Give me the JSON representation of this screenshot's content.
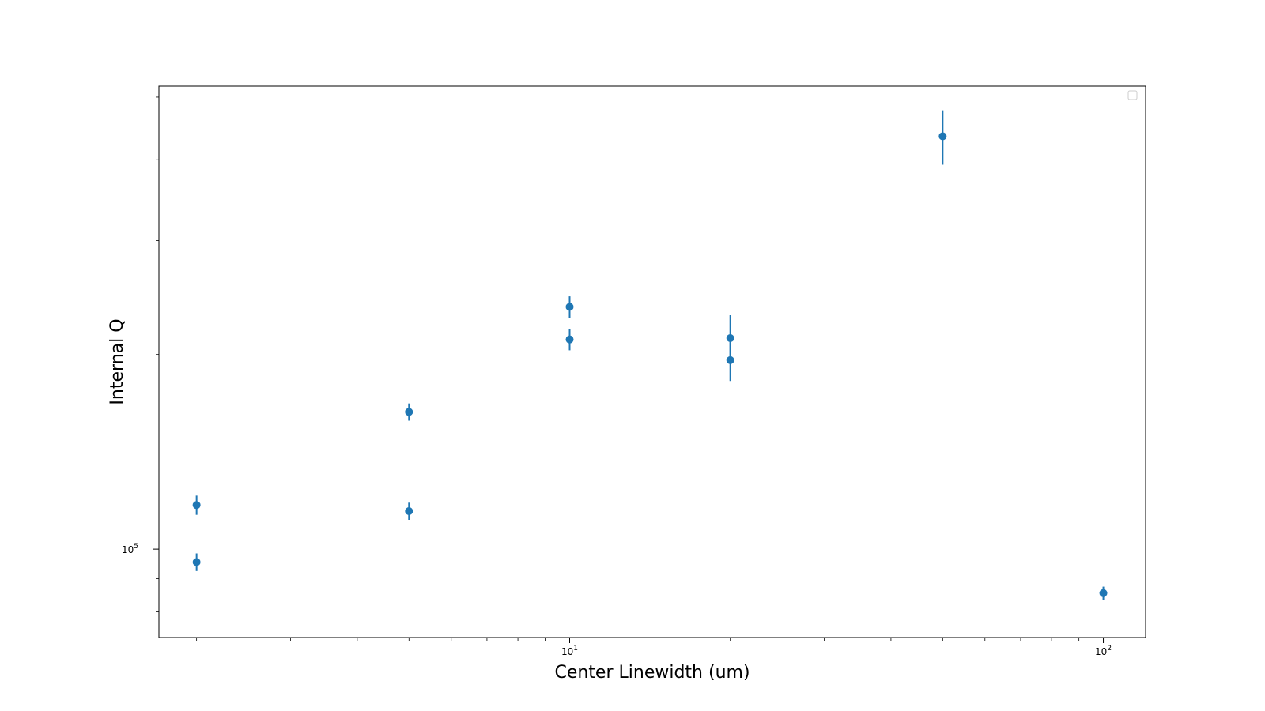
{
  "chart_data": {
    "type": "scatter",
    "title": "",
    "xlabel": "Center Linewidth (um)",
    "ylabel": "Internal Q",
    "xscale": "log",
    "yscale": "log",
    "xlim": [
      1.7,
      120
    ],
    "ylim": [
      73000,
      520000
    ],
    "grid": false,
    "legend": "top-right (empty)",
    "marker_color": "#1f77b4",
    "xticks": [
      {
        "value": 10,
        "label": "10",
        "exp": "1"
      },
      {
        "value": 100,
        "label": "10",
        "exp": "2"
      }
    ],
    "yticks": [
      {
        "value": 100000,
        "label": "10",
        "exp": "5"
      }
    ],
    "points": [
      {
        "x": 2,
        "y": 117000,
        "yerr_low": 4000,
        "yerr_high": 4000
      },
      {
        "x": 2,
        "y": 95500,
        "yerr_low": 3000,
        "yerr_high": 3000
      },
      {
        "x": 5,
        "y": 163000,
        "yerr_low": 5000,
        "yerr_high": 5000
      },
      {
        "x": 5,
        "y": 114500,
        "yerr_low": 3500,
        "yerr_high": 3500
      },
      {
        "x": 10,
        "y": 237000,
        "yerr_low": 9000,
        "yerr_high": 9000
      },
      {
        "x": 10,
        "y": 211000,
        "yerr_low": 8000,
        "yerr_high": 8000
      },
      {
        "x": 20,
        "y": 212000,
        "yerr_low": 14000,
        "yerr_high": 18000
      },
      {
        "x": 20,
        "y": 196000,
        "yerr_low": 14000,
        "yerr_high": 14000
      },
      {
        "x": 50,
        "y": 435000,
        "yerr_low": 42000,
        "yerr_high": 42000
      },
      {
        "x": 100,
        "y": 85500,
        "yerr_low": 2000,
        "yerr_high": 2000
      }
    ]
  }
}
